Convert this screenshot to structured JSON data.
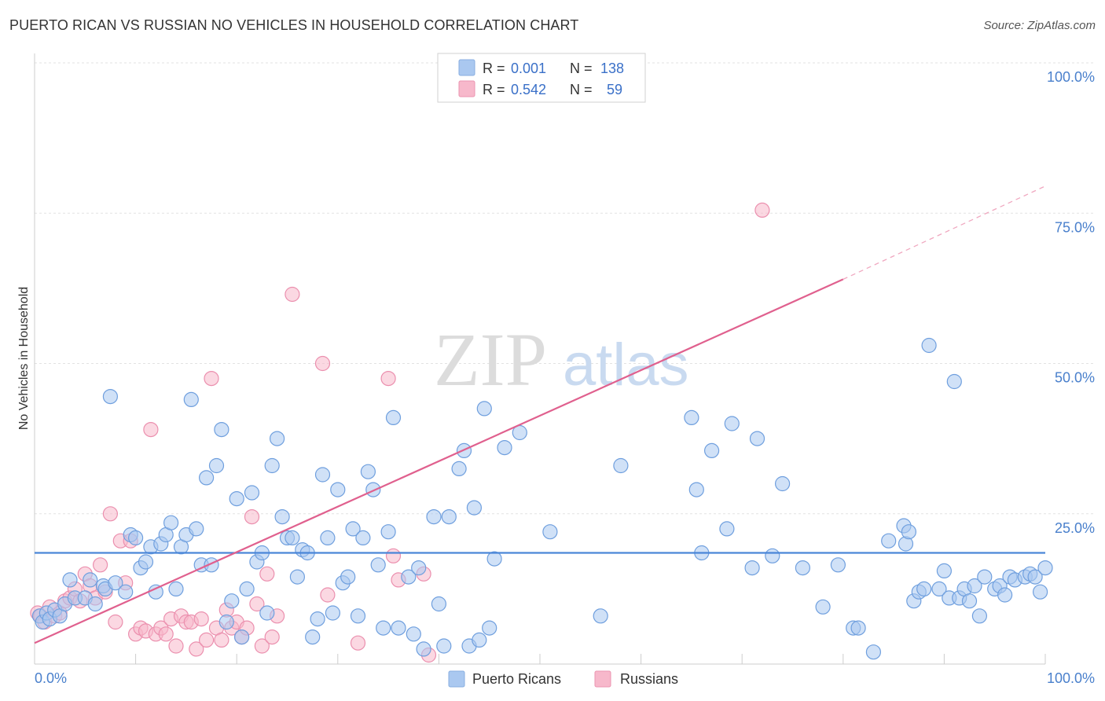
{
  "header": {
    "title": "PUERTO RICAN VS RUSSIAN NO VEHICLES IN HOUSEHOLD CORRELATION CHART",
    "source": "Source: ZipAtlas.com"
  },
  "watermark": {
    "zip": "ZIP",
    "atlas": "atlas"
  },
  "legend_top": {
    "rows": [
      {
        "r_label": "R =",
        "r_value": "0.001",
        "n_label": "N =",
        "n_value": "138",
        "color": "#aac8f0"
      },
      {
        "r_label": "R =",
        "r_value": "0.542",
        "n_label": "N =",
        "n_value": "59",
        "color": "#f7b8cb"
      }
    ]
  },
  "legend_bottom": {
    "items": [
      {
        "label": "Puerto Ricans",
        "color": "#aac8f0"
      },
      {
        "label": "Russians",
        "color": "#f7b8cb"
      }
    ]
  },
  "chart_data": {
    "type": "scatter",
    "title": "PUERTO RICAN VS RUSSIAN NO VEHICLES IN HOUSEHOLD CORRELATION CHART",
    "xlabel": "",
    "ylabel": "No Vehicles in Household",
    "xlim": [
      0,
      100
    ],
    "ylim": [
      0,
      100
    ],
    "x_tick_labels": [
      "0.0%",
      "100.0%"
    ],
    "y_tick_labels": [
      "25.0%",
      "50.0%",
      "75.0%",
      "100.0%"
    ],
    "y_ticks": [
      25,
      50,
      75,
      100
    ],
    "grid": true,
    "legend_position": "top-center",
    "colors": {
      "puerto_ricans": "#4a86d8",
      "russians": "#e0608e"
    },
    "series": [
      {
        "name": "Puerto Ricans",
        "r": 0.001,
        "n": 138,
        "trend": {
          "x": [
            0,
            100
          ],
          "y": [
            18.5,
            18.5
          ]
        },
        "points": [
          [
            0.5,
            8
          ],
          [
            0.8,
            7
          ],
          [
            1.2,
            8.5
          ],
          [
            1.5,
            7.5
          ],
          [
            2,
            9
          ],
          [
            2.5,
            8
          ],
          [
            3,
            10
          ],
          [
            3.5,
            14
          ],
          [
            4,
            11
          ],
          [
            5,
            11
          ],
          [
            5.5,
            14
          ],
          [
            6,
            10
          ],
          [
            6.8,
            13
          ],
          [
            7,
            12.5
          ],
          [
            7.5,
            44.5
          ],
          [
            8,
            13.5
          ],
          [
            9,
            12
          ],
          [
            9.5,
            21.5
          ],
          [
            10,
            21
          ],
          [
            10.5,
            16
          ],
          [
            11,
            17
          ],
          [
            11.5,
            19.5
          ],
          [
            12,
            12
          ],
          [
            12.5,
            20
          ],
          [
            13,
            21.5
          ],
          [
            13.5,
            23.5
          ],
          [
            14,
            12.5
          ],
          [
            14.5,
            19.5
          ],
          [
            15,
            21.5
          ],
          [
            15.5,
            44
          ],
          [
            16,
            22.5
          ],
          [
            16.5,
            16.5
          ],
          [
            17,
            31
          ],
          [
            17.5,
            16.5
          ],
          [
            18,
            33
          ],
          [
            18.5,
            39
          ],
          [
            19,
            7
          ],
          [
            19.5,
            10.5
          ],
          [
            20,
            27.5
          ],
          [
            20.5,
            4.5
          ],
          [
            21,
            12.5
          ],
          [
            21.5,
            28.5
          ],
          [
            22,
            17
          ],
          [
            22.5,
            18.5
          ],
          [
            23,
            8.5
          ],
          [
            23.5,
            33
          ],
          [
            24,
            37.5
          ],
          [
            24.5,
            24.5
          ],
          [
            25,
            21
          ],
          [
            25.5,
            21
          ],
          [
            26,
            14.5
          ],
          [
            26.5,
            19
          ],
          [
            27,
            18.5
          ],
          [
            27.5,
            4.5
          ],
          [
            28,
            7.5
          ],
          [
            28.5,
            31.5
          ],
          [
            29,
            21
          ],
          [
            29.5,
            8.5
          ],
          [
            30,
            29
          ],
          [
            30.5,
            13.5
          ],
          [
            31,
            14.5
          ],
          [
            31.5,
            22.5
          ],
          [
            32,
            8
          ],
          [
            32.5,
            21
          ],
          [
            33,
            32
          ],
          [
            33.5,
            29
          ],
          [
            34,
            16.5
          ],
          [
            34.5,
            6
          ],
          [
            35,
            22
          ],
          [
            35.5,
            41
          ],
          [
            36,
            6
          ],
          [
            37,
            14.5
          ],
          [
            37.5,
            5
          ],
          [
            38,
            16
          ],
          [
            38.5,
            2.5
          ],
          [
            39.5,
            24.5
          ],
          [
            40,
            10
          ],
          [
            40.5,
            3
          ],
          [
            41,
            24.5
          ],
          [
            42,
            32.5
          ],
          [
            42.5,
            35.5
          ],
          [
            43,
            3
          ],
          [
            43.5,
            26
          ],
          [
            44,
            4
          ],
          [
            44.5,
            42.5
          ],
          [
            45,
            6
          ],
          [
            45.5,
            17.5
          ],
          [
            46.5,
            36
          ],
          [
            48,
            38.5
          ],
          [
            51,
            22
          ],
          [
            56,
            8
          ],
          [
            58,
            33
          ],
          [
            65,
            41
          ],
          [
            65.5,
            29
          ],
          [
            66,
            18.5
          ],
          [
            67,
            35.5
          ],
          [
            68.5,
            22.5
          ],
          [
            69,
            40
          ],
          [
            71,
            16
          ],
          [
            71.5,
            37.5
          ],
          [
            73,
            18
          ],
          [
            74,
            30
          ],
          [
            76,
            16
          ],
          [
            78,
            9.5
          ],
          [
            79.5,
            16.5
          ],
          [
            81,
            6
          ],
          [
            81.5,
            6
          ],
          [
            83,
            2
          ],
          [
            84.5,
            20.5
          ],
          [
            86,
            23
          ],
          [
            86.2,
            20
          ],
          [
            86.5,
            22
          ],
          [
            87,
            10.5
          ],
          [
            87.5,
            12
          ],
          [
            88,
            12.5
          ],
          [
            88.5,
            53
          ],
          [
            89.5,
            12.5
          ],
          [
            90,
            15.5
          ],
          [
            90.5,
            11
          ],
          [
            91,
            47
          ],
          [
            91.5,
            11
          ],
          [
            92,
            12.5
          ],
          [
            92.5,
            10.5
          ],
          [
            93,
            13
          ],
          [
            93.5,
            8
          ],
          [
            94,
            14.5
          ],
          [
            95,
            12.5
          ],
          [
            95.5,
            13
          ],
          [
            96,
            11.5
          ],
          [
            96.5,
            14.5
          ],
          [
            97,
            14
          ],
          [
            98,
            14.5
          ],
          [
            98.5,
            15
          ],
          [
            99,
            14.5
          ],
          [
            99.5,
            12
          ],
          [
            100,
            16
          ]
        ]
      },
      {
        "name": "Russians",
        "r": 0.542,
        "n": 59,
        "trend": {
          "x": [
            0,
            80
          ],
          "y": [
            3.5,
            64
          ],
          "dashed_extension": {
            "x": [
              80,
              100
            ],
            "y": [
              64,
              79.5
            ]
          }
        },
        "points": [
          [
            0.3,
            8.5
          ],
          [
            0.6,
            8
          ],
          [
            1,
            7
          ],
          [
            1.5,
            9.5
          ],
          [
            2,
            8
          ],
          [
            2.5,
            8.5
          ],
          [
            3,
            10.5
          ],
          [
            3.5,
            11
          ],
          [
            4,
            12.5
          ],
          [
            4.5,
            10.5
          ],
          [
            5,
            15
          ],
          [
            5.5,
            13
          ],
          [
            6,
            11
          ],
          [
            6.5,
            16.5
          ],
          [
            7,
            12
          ],
          [
            7.5,
            25
          ],
          [
            8,
            7
          ],
          [
            8.5,
            20.5
          ],
          [
            9,
            13.5
          ],
          [
            9.5,
            20.5
          ],
          [
            10,
            5
          ],
          [
            10.5,
            6
          ],
          [
            11,
            5.5
          ],
          [
            11.5,
            39
          ],
          [
            12,
            5
          ],
          [
            12.5,
            6
          ],
          [
            13,
            5
          ],
          [
            13.5,
            7.5
          ],
          [
            14,
            3
          ],
          [
            14.5,
            8
          ],
          [
            15,
            7
          ],
          [
            15.5,
            7
          ],
          [
            16,
            2.5
          ],
          [
            16.5,
            7.5
          ],
          [
            17,
            4
          ],
          [
            17.5,
            47.5
          ],
          [
            18,
            6
          ],
          [
            18.5,
            4
          ],
          [
            19,
            9
          ],
          [
            19.5,
            6
          ],
          [
            20,
            7
          ],
          [
            20.5,
            4.5
          ],
          [
            21,
            6
          ],
          [
            21.5,
            24.5
          ],
          [
            22,
            10
          ],
          [
            22.5,
            3
          ],
          [
            23,
            15
          ],
          [
            23.5,
            4.5
          ],
          [
            24,
            8
          ],
          [
            25.5,
            61.5
          ],
          [
            28.5,
            50
          ],
          [
            29,
            11.5
          ],
          [
            32,
            3.5
          ],
          [
            35,
            47.5
          ],
          [
            35.5,
            18
          ],
          [
            36,
            14
          ],
          [
            38.5,
            15
          ],
          [
            39,
            1.5
          ],
          [
            72,
            75.5
          ]
        ]
      }
    ]
  }
}
